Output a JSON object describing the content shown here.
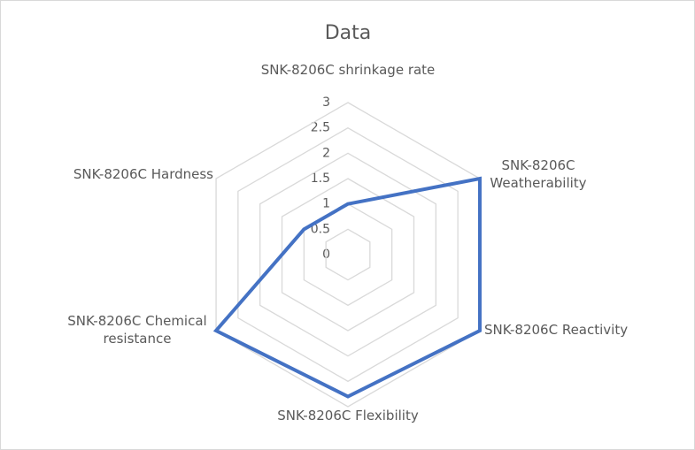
{
  "chart_data": {
    "type": "radar",
    "title": "Data",
    "categories": [
      "SNK-8206C shrinkage rate",
      "SNK-8206C Weatherability",
      "SNK-8206C Reactivity",
      "SNK-8206C Flexibility",
      "SNK-8206C Chemical resistance",
      "SNK-8206C Hardness"
    ],
    "values": [
      1,
      3,
      3,
      2.8,
      3,
      1
    ],
    "color": "#4472c4",
    "ylim": [
      0,
      3
    ],
    "yticks": [
      0,
      0.5,
      1,
      1.5,
      2,
      2.5,
      3
    ],
    "grid": true
  }
}
